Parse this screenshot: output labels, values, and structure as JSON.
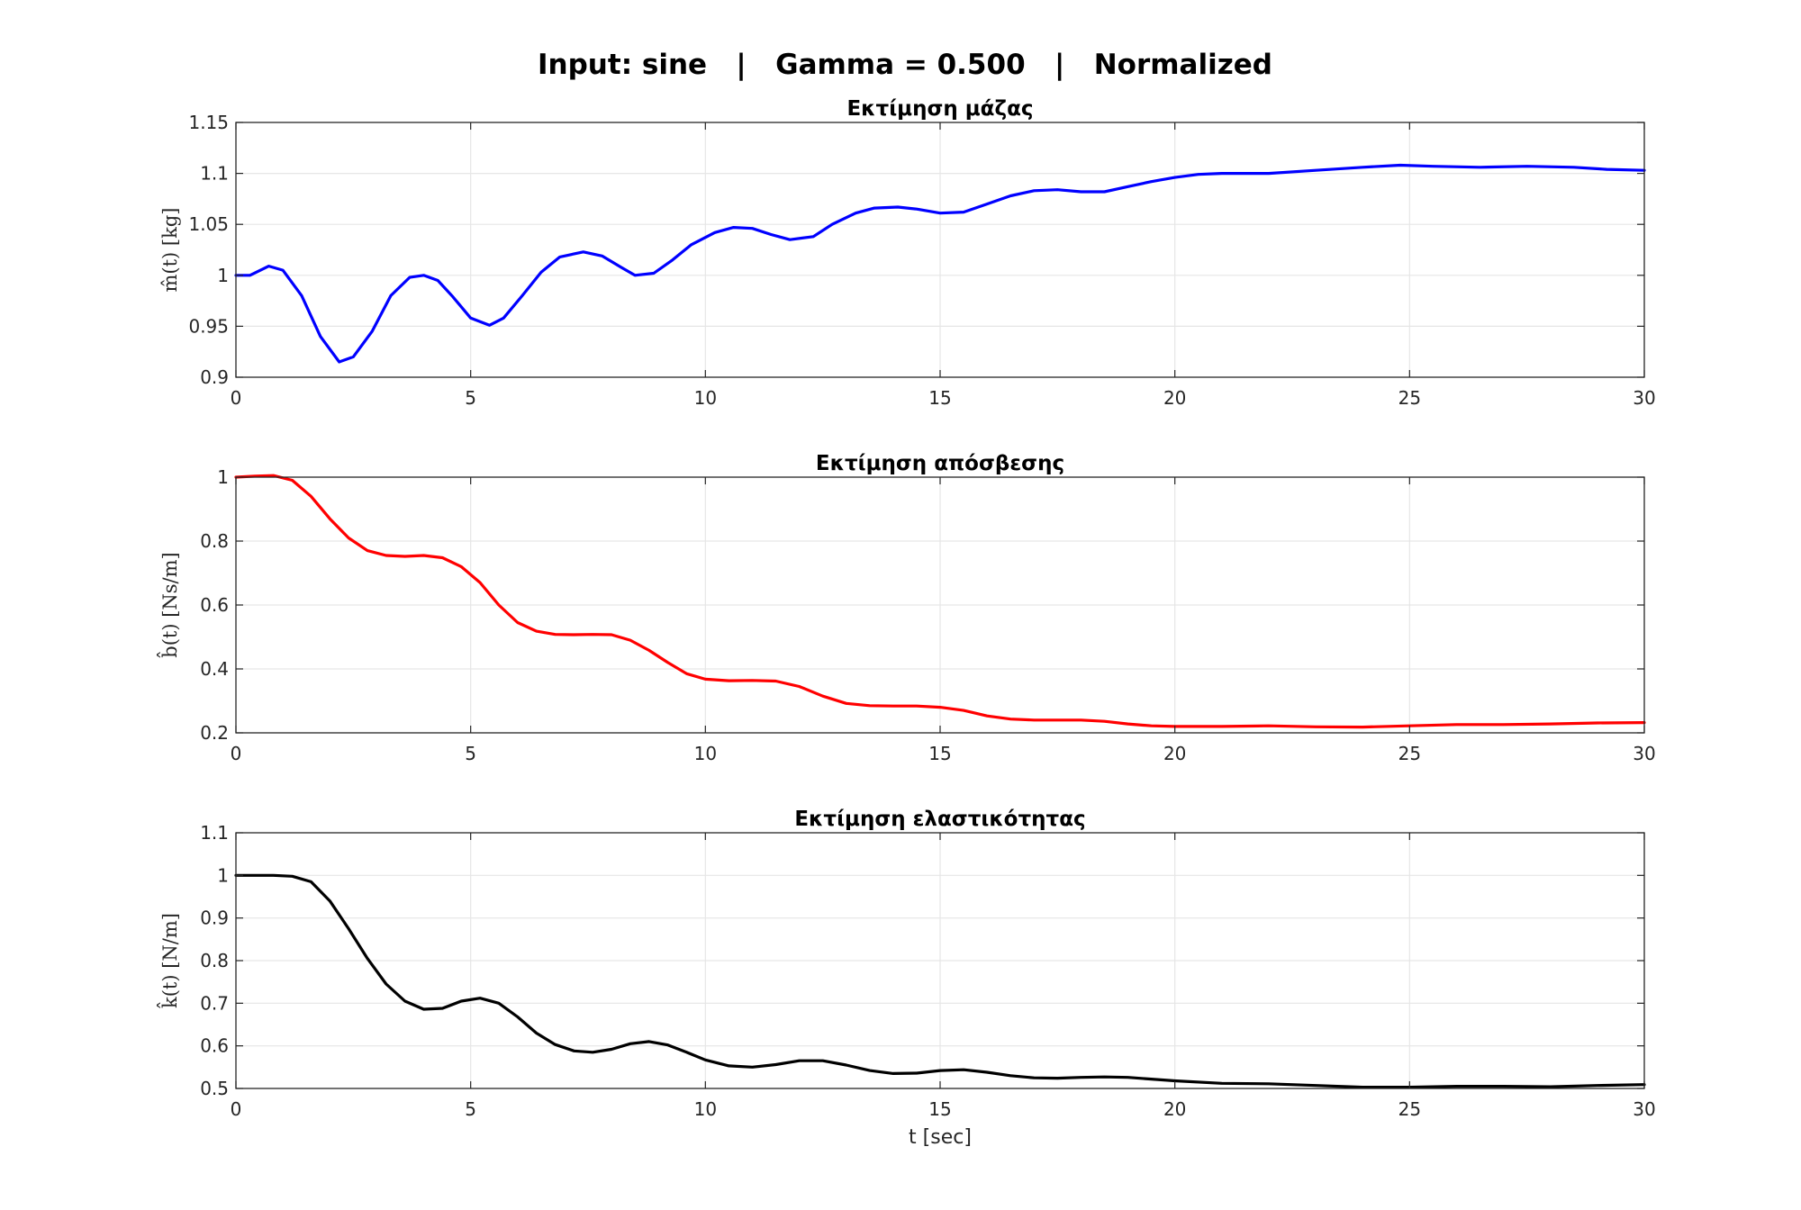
{
  "figure": {
    "suptitle": "Input: sine   |   Gamma = 0.500   |   Normalized"
  },
  "chart_data": [
    {
      "type": "line",
      "title": "Εκτίμηση μάζας",
      "xlabel": "",
      "ylabel": "m̂(t)  [kg]",
      "xlim": [
        0,
        30
      ],
      "ylim": [
        0.9,
        1.15
      ],
      "xticks": [
        0,
        5,
        10,
        15,
        20,
        25,
        30
      ],
      "yticks": [
        0.9,
        0.95,
        1,
        1.05,
        1.1,
        1.15
      ],
      "xtick_labels": [
        "0",
        "5",
        "10",
        "15",
        "20",
        "25",
        "30"
      ],
      "ytick_labels": [
        "0.9",
        "0.95",
        "1",
        "1.05",
        "1.1",
        "1.15"
      ],
      "grid": true,
      "series": [
        {
          "color": "#0000ff",
          "x": [
            0,
            0.3,
            0.7,
            1.0,
            1.4,
            1.8,
            2.2,
            2.5,
            2.9,
            3.3,
            3.7,
            4.0,
            4.3,
            4.6,
            5.0,
            5.4,
            5.7,
            6.1,
            6.5,
            6.9,
            7.4,
            7.8,
            8.2,
            8.5,
            8.9,
            9.3,
            9.7,
            10.2,
            10.6,
            11.0,
            11.4,
            11.8,
            12.3,
            12.7,
            13.2,
            13.6,
            14.1,
            14.5,
            15.0,
            15.5,
            16.0,
            16.5,
            17.0,
            17.5,
            18.0,
            18.5,
            19.0,
            19.5,
            20.0,
            20.5,
            21.0,
            21.5,
            22.0,
            23.0,
            24.0,
            24.8,
            25.5,
            26.5,
            27.5,
            28.5,
            29.2,
            30.0
          ],
          "y": [
            1.0,
            1.0,
            1.009,
            1.005,
            0.98,
            0.94,
            0.915,
            0.92,
            0.945,
            0.98,
            0.998,
            1.0,
            0.995,
            0.98,
            0.958,
            0.951,
            0.958,
            0.98,
            1.003,
            1.018,
            1.023,
            1.019,
            1.008,
            1.0,
            1.002,
            1.015,
            1.03,
            1.042,
            1.047,
            1.046,
            1.04,
            1.035,
            1.038,
            1.05,
            1.061,
            1.066,
            1.067,
            1.065,
            1.061,
            1.062,
            1.07,
            1.078,
            1.083,
            1.084,
            1.082,
            1.082,
            1.087,
            1.092,
            1.096,
            1.099,
            1.1,
            1.1,
            1.1,
            1.103,
            1.106,
            1.108,
            1.107,
            1.106,
            1.107,
            1.106,
            1.104,
            1.103
          ]
        }
      ]
    },
    {
      "type": "line",
      "title": "Εκτίμηση απόσβεσης",
      "xlabel": "",
      "ylabel": "b̂(t)  [Ns/m]",
      "xlim": [
        0,
        30
      ],
      "ylim": [
        0.2,
        1
      ],
      "xticks": [
        0,
        5,
        10,
        15,
        20,
        25,
        30
      ],
      "yticks": [
        0.2,
        0.4,
        0.6,
        0.8,
        1
      ],
      "xtick_labels": [
        "0",
        "5",
        "10",
        "15",
        "20",
        "25",
        "30"
      ],
      "ytick_labels": [
        "0.2",
        "0.4",
        "0.6",
        "0.8",
        "1"
      ],
      "grid": true,
      "series": [
        {
          "color": "#ff0000",
          "x": [
            0,
            0.4,
            0.8,
            1.2,
            1.6,
            2.0,
            2.4,
            2.8,
            3.2,
            3.6,
            4.0,
            4.4,
            4.8,
            5.2,
            5.6,
            6.0,
            6.4,
            6.8,
            7.2,
            7.6,
            8.0,
            8.4,
            8.8,
            9.2,
            9.6,
            10.0,
            10.5,
            11.0,
            11.5,
            12.0,
            12.5,
            13.0,
            13.5,
            14.0,
            14.5,
            15.0,
            15.5,
            16.0,
            16.5,
            17.0,
            17.5,
            18.0,
            18.5,
            19.0,
            19.5,
            20.0,
            21.0,
            22.0,
            23.0,
            24.0,
            25.0,
            26.0,
            27.0,
            28.0,
            29.0,
            30.0
          ],
          "y": [
            1.0,
            1.003,
            1.005,
            0.99,
            0.94,
            0.87,
            0.81,
            0.77,
            0.755,
            0.752,
            0.755,
            0.748,
            0.72,
            0.67,
            0.6,
            0.545,
            0.518,
            0.508,
            0.507,
            0.508,
            0.507,
            0.49,
            0.458,
            0.42,
            0.385,
            0.368,
            0.363,
            0.364,
            0.362,
            0.345,
            0.315,
            0.292,
            0.285,
            0.284,
            0.284,
            0.28,
            0.27,
            0.253,
            0.243,
            0.24,
            0.24,
            0.24,
            0.236,
            0.228,
            0.222,
            0.22,
            0.22,
            0.222,
            0.219,
            0.218,
            0.222,
            0.226,
            0.226,
            0.228,
            0.231,
            0.232
          ]
        }
      ]
    },
    {
      "type": "line",
      "title": "Εκτίμηση ελαστικότητας",
      "xlabel": "t [sec]",
      "ylabel": "k̂(t)  [N/m]",
      "xlim": [
        0,
        30
      ],
      "ylim": [
        0.5,
        1.1
      ],
      "xticks": [
        0,
        5,
        10,
        15,
        20,
        25,
        30
      ],
      "yticks": [
        0.5,
        0.6,
        0.7,
        0.8,
        0.9,
        1,
        1.1
      ],
      "xtick_labels": [
        "0",
        "5",
        "10",
        "15",
        "20",
        "25",
        "30"
      ],
      "ytick_labels": [
        "0.5",
        "0.6",
        "0.7",
        "0.8",
        "0.9",
        "1",
        "1.1"
      ],
      "grid": true,
      "series": [
        {
          "color": "#000000",
          "x": [
            0,
            0.4,
            0.8,
            1.2,
            1.6,
            2.0,
            2.4,
            2.8,
            3.2,
            3.6,
            4.0,
            4.4,
            4.8,
            5.2,
            5.6,
            6.0,
            6.4,
            6.8,
            7.2,
            7.6,
            8.0,
            8.4,
            8.8,
            9.2,
            9.6,
            10.0,
            10.5,
            11.0,
            11.5,
            12.0,
            12.5,
            13.0,
            13.5,
            14.0,
            14.5,
            15.0,
            15.5,
            16.0,
            16.5,
            17.0,
            17.5,
            18.0,
            18.5,
            19.0,
            19.5,
            20.0,
            21.0,
            22.0,
            23.0,
            24.0,
            25.0,
            26.0,
            27.0,
            28.0,
            29.0,
            30.0
          ],
          "y": [
            1.0,
            1.0,
            1.0,
            0.998,
            0.985,
            0.94,
            0.875,
            0.805,
            0.745,
            0.705,
            0.686,
            0.688,
            0.705,
            0.712,
            0.7,
            0.668,
            0.63,
            0.603,
            0.588,
            0.585,
            0.592,
            0.605,
            0.61,
            0.602,
            0.585,
            0.567,
            0.553,
            0.55,
            0.556,
            0.565,
            0.565,
            0.555,
            0.542,
            0.535,
            0.536,
            0.542,
            0.544,
            0.538,
            0.53,
            0.525,
            0.524,
            0.526,
            0.527,
            0.526,
            0.522,
            0.518,
            0.512,
            0.511,
            0.507,
            0.503,
            0.503,
            0.505,
            0.505,
            0.504,
            0.507,
            0.509
          ]
        }
      ]
    }
  ]
}
